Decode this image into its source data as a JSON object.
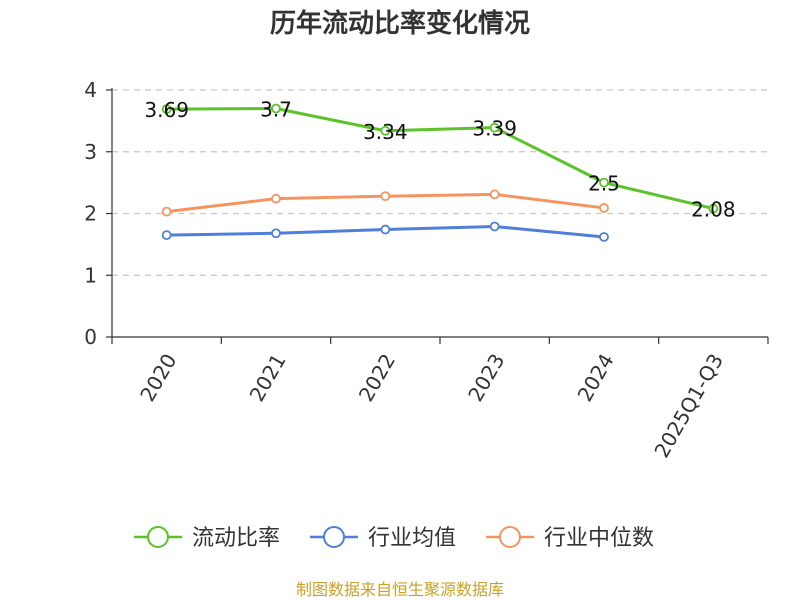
{
  "chart_data": {
    "type": "line",
    "title": "历年流动比率变化情况",
    "categories": [
      "2020",
      "2021",
      "2022",
      "2023",
      "2024",
      "2025Q1-Q3"
    ],
    "ylim": [
      0,
      4
    ],
    "yticks": [
      "0",
      "1",
      "2",
      "3",
      "4"
    ],
    "grid": "dashed-horizontal",
    "legend_position": "bottom",
    "series": [
      {
        "name": "流动比率",
        "color": "#5cc22a",
        "values": [
          3.69,
          3.7,
          3.34,
          3.39,
          2.5,
          2.08
        ],
        "labels": [
          "3.69",
          "3.7",
          "3.34",
          "3.39",
          "2.5",
          "2.08"
        ]
      },
      {
        "name": "行业均值",
        "color": "#4f7fd8",
        "values": [
          1.65,
          1.68,
          1.74,
          1.79,
          1.62,
          null
        ]
      },
      {
        "name": "行业中位数",
        "color": "#f59461",
        "values": [
          2.03,
          2.24,
          2.28,
          2.31,
          2.09,
          null
        ]
      }
    ],
    "source": "制图数据来自恒生聚源数据库"
  }
}
